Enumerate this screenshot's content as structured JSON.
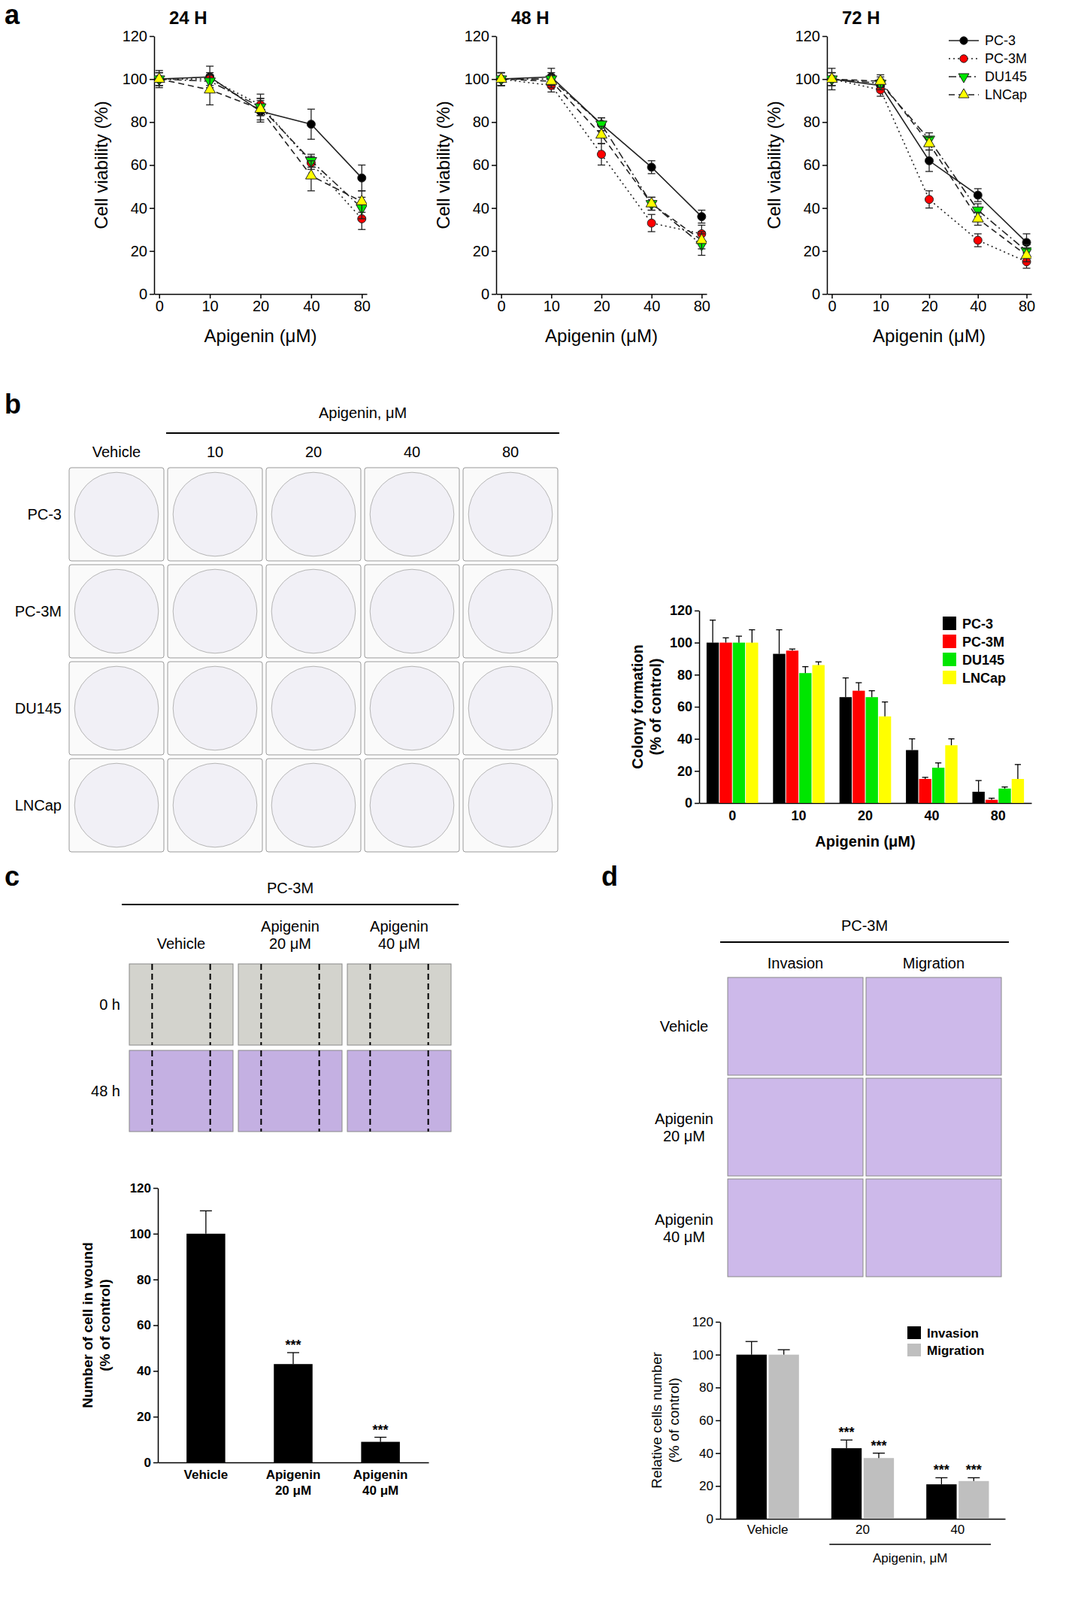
{
  "chart_data": [
    {
      "type": "line",
      "panel": "a",
      "title": "24 H",
      "categories": [
        "0",
        "10",
        "20",
        "40",
        "80"
      ],
      "x_label": "Apigenin (μM)",
      "y_label": "Cell viability (%)",
      "ylim": [
        0,
        120
      ],
      "yticks": [
        0,
        20,
        40,
        60,
        80,
        100,
        120
      ],
      "series": [
        {
          "color": "#000000",
          "marker": "circle",
          "line_style": "solid",
          "values": [
            100,
            101,
            85,
            79,
            54
          ],
          "errors": [
            4,
            5,
            5,
            7,
            6
          ]
        },
        {
          "color": "#ff0000",
          "marker": "circle",
          "line_style": "dotted",
          "values": [
            100,
            100,
            88,
            61,
            35
          ],
          "errors": [
            3,
            3,
            5,
            3,
            5
          ]
        },
        {
          "color": "#00e600",
          "marker": "triangle-down",
          "line_style": "dashdot",
          "values": [
            100,
            99,
            87,
            62,
            40
          ],
          "errors": [
            3,
            3,
            4,
            3,
            5
          ]
        },
        {
          "color": "#ffff00",
          "marker": "triangle-up",
          "line_style": "dashed",
          "values": [
            100,
            95,
            86,
            55,
            43
          ],
          "errors": [
            3,
            7,
            5,
            7,
            5
          ]
        }
      ]
    },
    {
      "type": "line",
      "title": "48 H",
      "categories": [
        "0",
        "10",
        "20",
        "40",
        "80"
      ],
      "x_label": "Apigenin (μM)",
      "y_label": "Cell viability (%)",
      "ylim": [
        0,
        120
      ],
      "yticks": [
        0,
        20,
        40,
        60,
        80,
        100,
        120
      ],
      "series": [
        {
          "color": "#000000",
          "marker": "circle",
          "line_style": "solid",
          "values": [
            100,
            101,
            79,
            59,
            36
          ],
          "errors": [
            3,
            4,
            3,
            3,
            3
          ]
        },
        {
          "color": "#ff0000",
          "marker": "circle",
          "line_style": "dotted",
          "values": [
            100,
            97,
            65,
            33,
            28
          ],
          "errors": [
            3,
            3,
            5,
            4,
            4
          ]
        },
        {
          "color": "#00e600",
          "marker": "triangle-down",
          "line_style": "dashdot",
          "values": [
            100,
            100,
            79,
            42,
            23
          ],
          "errors": [
            3,
            3,
            3,
            3,
            5
          ]
        },
        {
          "color": "#ffff00",
          "marker": "triangle-up",
          "line_style": "dashed",
          "values": [
            100,
            99,
            74,
            42,
            25
          ],
          "errors": [
            3,
            3,
            4,
            3,
            4
          ]
        }
      ]
    },
    {
      "type": "line",
      "title": "72 H",
      "categories": [
        "0",
        "10",
        "20",
        "40",
        "80"
      ],
      "x_label": "Apigenin (μM)",
      "y_label": "Cell viability (%)",
      "ylim": [
        0,
        120
      ],
      "yticks": [
        0,
        20,
        40,
        60,
        80,
        100,
        120
      ],
      "legend": "upper right",
      "series": [
        {
          "name": "PC-3",
          "color": "#000000",
          "marker": "circle",
          "line_style": "solid",
          "values": [
            100,
            97,
            62,
            46,
            24
          ],
          "errors": [
            5,
            3,
            5,
            3,
            4
          ]
        },
        {
          "name": "PC-3M",
          "color": "#ff0000",
          "marker": "circle",
          "line_style": "dotted",
          "values": [
            100,
            95,
            44,
            25,
            15
          ],
          "errors": [
            3,
            3,
            4,
            3,
            3
          ]
        },
        {
          "name": "DU145",
          "color": "#00e600",
          "marker": "triangle-down",
          "line_style": "dashdot",
          "values": [
            100,
            98,
            72,
            39,
            20
          ],
          "errors": [
            3,
            3,
            3,
            3,
            3
          ]
        },
        {
          "name": "LNCap",
          "color": "#ffff00",
          "marker": "triangle-up",
          "line_style": "dashed",
          "values": [
            100,
            99,
            70,
            35,
            18
          ],
          "errors": [
            3,
            3,
            3,
            3,
            3
          ]
        }
      ]
    },
    {
      "type": "image_grid",
      "panel": "b",
      "title": "Apigenin, μM",
      "columns": [
        "Vehicle",
        "10",
        "20",
        "40",
        "80"
      ],
      "rows": [
        "PC-3",
        "PC-3M",
        "DU145",
        "LNCap"
      ]
    },
    {
      "type": "bar",
      "categories": [
        "0",
        "10",
        "20",
        "40",
        "80"
      ],
      "x_label": "Apigenin (μM)",
      "y_label": "Colony formation (% of control)",
      "ylim": [
        0,
        120
      ],
      "yticks": [
        0,
        20,
        40,
        60,
        80,
        100,
        120
      ],
      "legend": "upper right",
      "series": [
        {
          "name": "PC-3",
          "color": "#000000",
          "values": [
            100,
            93,
            66,
            33,
            7
          ],
          "errors": [
            14,
            15,
            12,
            7,
            7
          ]
        },
        {
          "name": "PC-3M",
          "color": "#ff0000",
          "values": [
            100,
            95,
            70,
            15,
            2
          ],
          "errors": [
            3,
            1,
            5,
            1,
            1
          ]
        },
        {
          "name": "DU145",
          "color": "#00e600",
          "values": [
            100,
            81,
            66,
            22,
            9
          ],
          "errors": [
            4,
            4,
            4,
            3,
            1
          ]
        },
        {
          "name": "LNCap",
          "color": "#ffff00",
          "values": [
            100,
            86,
            54,
            36,
            15
          ],
          "errors": [
            8,
            2,
            9,
            4,
            9
          ]
        }
      ]
    },
    {
      "type": "image_grid",
      "panel": "c",
      "title": "PC-3M",
      "columns": [
        "Vehicle",
        "Apigenin 20 μM",
        "Apigenin 40 μM"
      ],
      "rows": [
        "0 h",
        "48 h"
      ]
    },
    {
      "type": "bar",
      "categories": [
        "Vehicle",
        "Apigenin 20 μM",
        "Apigenin 40 μM"
      ],
      "y_label": "Number of cell in wound (% of control)",
      "ylim": [
        0,
        120
      ],
      "yticks": [
        0,
        20,
        40,
        60,
        80,
        100,
        120
      ],
      "series": [
        {
          "color": "#000000",
          "values": [
            100,
            43,
            9
          ],
          "errors": [
            10,
            5,
            2
          ],
          "significance": [
            null,
            "***",
            "***"
          ]
        }
      ]
    },
    {
      "type": "image_grid",
      "panel": "d",
      "title": "PC-3M",
      "columns": [
        "Invasion",
        "Migration"
      ],
      "rows": [
        "Vehicle",
        "Apigenin 20 μM",
        "Apigenin 40 μM"
      ]
    },
    {
      "type": "bar",
      "categories": [
        "Vehicle",
        "20",
        "40"
      ],
      "x_label": "Apigenin, μM",
      "y_label": "Relative cells number (% of control)",
      "ylim": [
        0,
        120
      ],
      "yticks": [
        0,
        20,
        40,
        60,
        80,
        100,
        120
      ],
      "legend": "upper right",
      "series": [
        {
          "name": "Invasion",
          "color": "#000000",
          "values": [
            100,
            43,
            21
          ],
          "errors": [
            8,
            5,
            4
          ],
          "significance": [
            null,
            "***",
            "***"
          ]
        },
        {
          "name": "Migration",
          "color": "#bfbfbf",
          "values": [
            100,
            37,
            23
          ],
          "errors": [
            3,
            3,
            2
          ],
          "significance": [
            null,
            "***",
            "***"
          ]
        }
      ]
    }
  ]
}
